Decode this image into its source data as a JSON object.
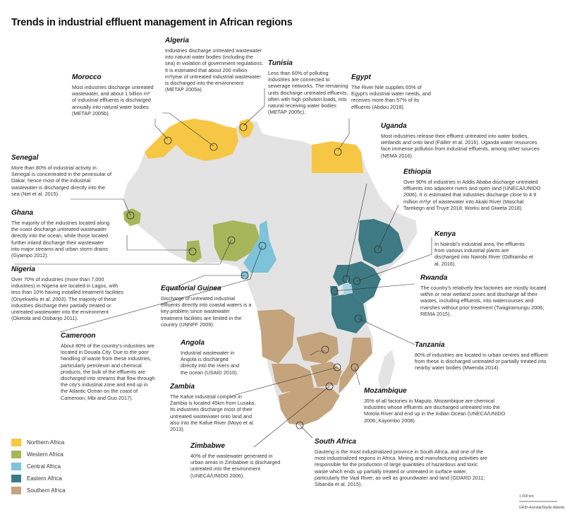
{
  "title": "Trends in industrial effluent management in African regions",
  "legend": [
    {
      "label": "Northern Africa",
      "color": "#f6c744"
    },
    {
      "label": "Western Africa",
      "color": "#a7b65a"
    },
    {
      "label": "Central Africa",
      "color": "#7dc3d9"
    },
    {
      "label": "Eastern Africa",
      "color": "#3d7a83"
    },
    {
      "label": "Southern Africa",
      "color": "#c4a47c"
    }
  ],
  "base_color": "#e3e3e3",
  "scale": "1 000 km",
  "credit": "GRID-Arendal/Studio Atlantis",
  "callouts": {
    "algeria": {
      "name": "Algeria",
      "text": "Industries discharge untreated wastewater into natural water bodies (including the sea) in violation of government regulations. It is estimated that about 200 million m³/year of untreated industrial wastewater is discharged into the environment (METAP 2005a)."
    },
    "morocco": {
      "name": "Morocco",
      "text": "Most industries discharge untreated wastewater, and about 1 billion m³ of industrial effluents is discharged annually into natural water bodies (METAP 2005b)."
    },
    "tunisia": {
      "name": "Tunisia",
      "text": "Less than 60% of polluting industries are connected to sewerage networks. The remaining units discharge untreated effluents, often with high pollution loads, into natural receiving water bodies (METAP 2005c)."
    },
    "egypt": {
      "name": "Egypt",
      "text": "The River Nile supplies 65% of Egypt's industrial water needs, and receives more than 57% of its effluents (Abdou 2018)."
    },
    "uganda": {
      "name": "Uganda",
      "text": "Most industries release their effluent untreated into water bodies, wetlands and onto land (Failler et al. 2016). Uganda water resources face immense pollution from industrial effluents, among other sources (NEMA 2016)."
    },
    "ethiopia": {
      "name": "Ethiopia",
      "text": "Over 90% of industries in Addis Ababa discharge untreated effluents into adjacent rivers and open land (UNECA/UNIDO 2006). It is estimated that industries discharge close to 4.9 million m³/yr of wastewater into Akaki River (Maschal Tarekegn and Truye 2018; Worku and Giweta 2018)."
    },
    "senegal": {
      "name": "Senegal",
      "text": "More than 80% of industrial activity in Senegal is concentrated in the peninsular of Dakar, hence most of the industrial wastewater is discharged directly into the sea (Net et al. 2015)."
    },
    "ghana": {
      "name": "Ghana",
      "text": "The majority of the industries located along the coast discharge untreated wastewater directly into the ocean, while those located further inland discharge their wastewater into major streams and urban storm drains (Gyampo 2012)."
    },
    "kenya": {
      "name": "Kenya",
      "text": "In Nairobi's industrial area, the effluents from various industrial plants are discharged into Nairobi River (Odhiambo et al. 2016)."
    },
    "nigeria": {
      "name": "Nigeria",
      "text": "Over 70% of industries (more than 7,000 industries) in Nigeria are located in Lagos, with less than 10% having installed treatment facilities (Onyekwelu et al. 2003). The majority of these industries discharge their partially treated or untreated wastewater into the environment (Oketola and Osibanjo 2011)."
    },
    "rwanda": {
      "name": "Rwanda",
      "text": "The country's relatively few factories are mostly located within or near wetland zones and discharge all their wastes, including effluents, into watercourses and marshes without prior treatment (Twagiramungu 2006; REMA 2015)."
    },
    "eq_guinea": {
      "name": "Equatorial Guinea",
      "text": "Discharge of untreated industrial effluents directly into coastal waters is a key problem since wastewater treatment facilities are limited in the country (UNNFF 2009)."
    },
    "cameroon": {
      "name": "Cameroon",
      "text": "About 80% of the country's industries are located in Douala City. Due to the poor handling of waste from these industries, particularly petroleum and chemical products, the bulk of the effluents are discharged into streams that flow through the city's industrial zone and end up in the Atlantic Ocean on the coast of Cameroon; Mbi and Guo 2017)."
    },
    "angola": {
      "name": "Angola",
      "text": "Industrial wastewater in Angola is discharged directly into the rivers and the ocean (USAID 2010)."
    },
    "tanzania": {
      "name": "Tanzania",
      "text": "80% of industries are located in urban centres and effluent from these is discharged untreated or partially treated into nearby water bodies (Mwenda 2014)."
    },
    "zambia": {
      "name": "Zambia",
      "text": "The Kafue industrial complex in Zambia is located 45km from Lusaka. Its industries discharge most of their untreated wastewater onto land and also into the Kafue River (Moyo et al. 2013)."
    },
    "mozambique": {
      "name": "Mozambique",
      "text": "35% of all factories in Maputo, Mozambique are chemical industries whose effluents are discharged untreated into the Motola River and end up in the Indian Ocean (UNECA/UNIDO 2006; Kayombo 2008)."
    },
    "zimbabwe": {
      "name": "Zimbabwe",
      "text": "40% of the wastewater generated in urban areas in Zimbabwe is discharged untreated into the environment (UNECA/UNIDO 2006)."
    },
    "south_africa": {
      "name": "South Africa",
      "text": "Gauteng is the most industrialized province in South Africa, and one of the most industrialized regions in Africa. Mining and manufacturing activities are responsible for the production of large quantities of hazardous and toxic waste which ends up partially treated or untreated in surface water, particularly the Vaal River, as well as groundwater and land (GDARD 2011; Sibanda et al. 2015)."
    }
  }
}
